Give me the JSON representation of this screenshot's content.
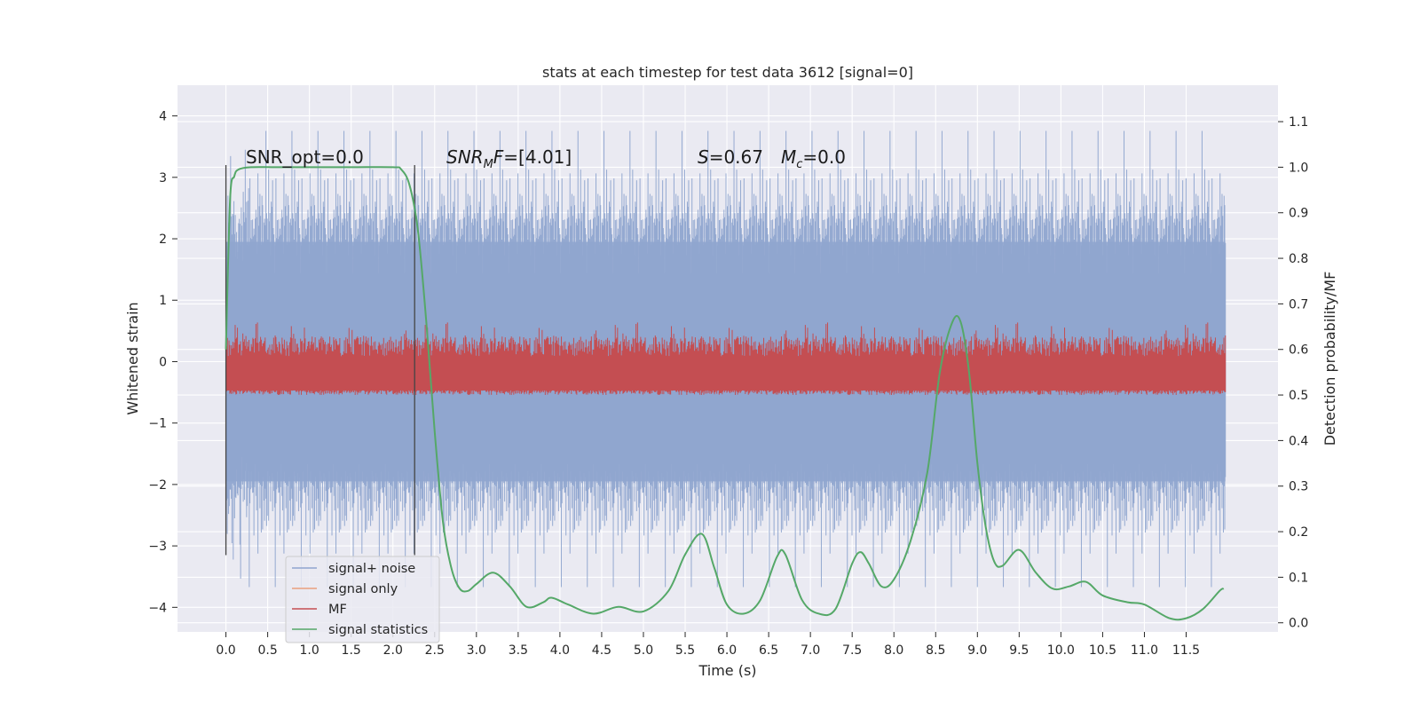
{
  "chart_data": {
    "type": "line",
    "title": "stats at each timestep for test data 3612 [signal=0]",
    "xlabel": "Time (s)",
    "ylabel": "Whitened strain",
    "y2label": "Detection probability/MF",
    "xlim": [
      -0.58,
      12.6
    ],
    "ylim": [
      -4.4,
      4.5
    ],
    "y2lim": [
      -0.02,
      1.18
    ],
    "x_ticks": [
      "0.0",
      "0.5",
      "1.0",
      "1.5",
      "2.0",
      "2.5",
      "3.0",
      "3.5",
      "4.0",
      "4.5",
      "5.0",
      "5.5",
      "6.0",
      "6.5",
      "7.0",
      "7.5",
      "8.0",
      "8.5",
      "9.0",
      "9.5",
      "10.0",
      "10.5",
      "11.0",
      "11.5"
    ],
    "y_ticks": [
      "4",
      "3",
      "2",
      "1",
      "0",
      "−1",
      "−2",
      "−3",
      "−4"
    ],
    "y2_ticks": [
      "1.1",
      "1.0",
      "0.9",
      "0.8",
      "0.7",
      "0.6",
      "0.5",
      "0.4",
      "0.3",
      "0.2",
      "0.1",
      "0.0"
    ],
    "grid": true,
    "legend_position": "bottom-left",
    "vlines": [
      {
        "x": 0.0,
        "y": [
          -3.15,
          3.2
        ]
      },
      {
        "x": 2.26,
        "y": [
          -3.15,
          3.2
        ]
      }
    ],
    "annotations": {
      "snr_opt": "SNR_opt=0.0",
      "snr_mf": "=[4.01]",
      "s_val": "=0.67",
      "mc_val": "=0.0"
    },
    "series": [
      {
        "name": "signal+ noise",
        "color": "#8fa5cf",
        "noise_band": [
          -2.1,
          2.1
        ],
        "peaks_range": [
          -4.1,
          4.1
        ]
      },
      {
        "name": "signal only",
        "color": "#e9a07e",
        "values": []
      },
      {
        "name": "MF",
        "color": "#c44e52",
        "band_y2": [
          0.5,
          0.62
        ],
        "peak_y2": 0.66
      },
      {
        "name": "signal statistics",
        "color": "#55a868",
        "x": [
          0.0,
          0.05,
          0.1,
          0.15,
          0.3,
          0.6,
          1.0,
          1.5,
          2.0,
          2.1,
          2.2,
          2.3,
          2.4,
          2.5,
          2.6,
          2.7,
          2.8,
          2.9,
          3.0,
          3.2,
          3.4,
          3.6,
          3.8,
          3.9,
          4.1,
          4.4,
          4.7,
          5.0,
          5.3,
          5.5,
          5.7,
          5.85,
          6.0,
          6.2,
          6.4,
          6.6,
          6.7,
          6.9,
          7.1,
          7.3,
          7.5,
          7.6,
          7.7,
          7.85,
          8.0,
          8.2,
          8.4,
          8.55,
          8.7,
          8.8,
          8.9,
          9.0,
          9.1,
          9.2,
          9.3,
          9.5,
          9.7,
          9.9,
          10.1,
          10.3,
          10.5,
          10.8,
          11.0,
          11.3,
          11.5,
          11.7,
          11.9,
          11.95
        ],
        "y": [
          0.6,
          0.93,
          0.98,
          0.995,
          1.0,
          1.0,
          1.0,
          1.0,
          1.0,
          0.995,
          0.96,
          0.86,
          0.66,
          0.42,
          0.22,
          0.12,
          0.075,
          0.07,
          0.085,
          0.11,
          0.08,
          0.035,
          0.045,
          0.055,
          0.04,
          0.02,
          0.035,
          0.025,
          0.07,
          0.15,
          0.195,
          0.12,
          0.04,
          0.02,
          0.05,
          0.145,
          0.15,
          0.05,
          0.02,
          0.03,
          0.13,
          0.155,
          0.13,
          0.08,
          0.095,
          0.18,
          0.33,
          0.55,
          0.66,
          0.66,
          0.55,
          0.35,
          0.21,
          0.135,
          0.125,
          0.16,
          0.11,
          0.075,
          0.08,
          0.09,
          0.06,
          0.045,
          0.04,
          0.01,
          0.01,
          0.03,
          0.07,
          0.075
        ]
      }
    ]
  }
}
